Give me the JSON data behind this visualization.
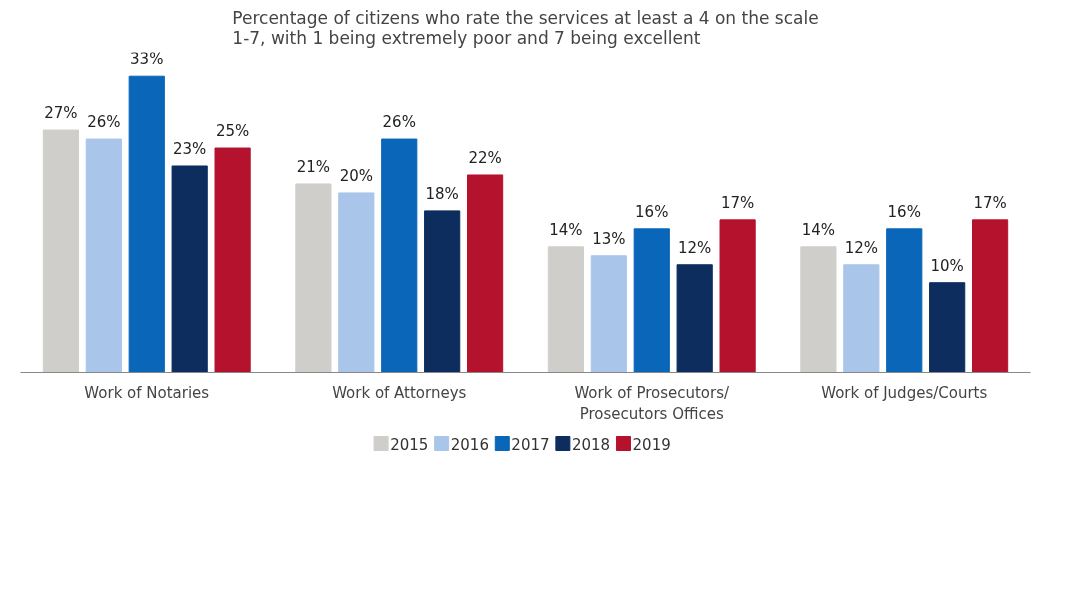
{
  "chart_data": {
    "type": "bar",
    "title": "Percentage of citizens who rate the services at least a 4 on the scale\n1-7, with 1 being extremely poor and 7 being excellent",
    "categories": [
      "Work of Notaries",
      "Work of Attorneys",
      "Work of Prosecutors/\nProsecutors Offices",
      "Work of Judges/Courts"
    ],
    "tick_labels": "x",
    "grid": false,
    "legend": "bottom",
    "series": [
      {
        "name": "2015",
        "color": "#d0cecb",
        "values": [
          27,
          21,
          14,
          14
        ],
        "value_labels": [
          "27%",
          "21%",
          "14%",
          "14%"
        ]
      },
      {
        "name": "2016",
        "color": "#a9c6ea",
        "values": [
          26,
          20,
          13,
          12
        ],
        "value_labels": [
          "26%",
          "20%",
          "13%",
          "12%"
        ]
      },
      {
        "name": "2017",
        "color": "#0a66b8",
        "values": [
          33,
          26,
          16,
          16
        ],
        "value_labels": [
          "33%",
          "26%",
          "16%",
          "16%"
        ]
      },
      {
        "name": "2018",
        "color": "#0c2d5e",
        "values": [
          23,
          18,
          12,
          10
        ],
        "value_labels": [
          "23%",
          "18%",
          "12%",
          "10%"
        ]
      },
      {
        "name": "2019",
        "color": "#b5122e",
        "values": [
          25,
          22,
          17,
          17
        ],
        "value_labels": [
          "25%",
          "22%",
          "17%",
          "17%"
        ]
      }
    ]
  }
}
